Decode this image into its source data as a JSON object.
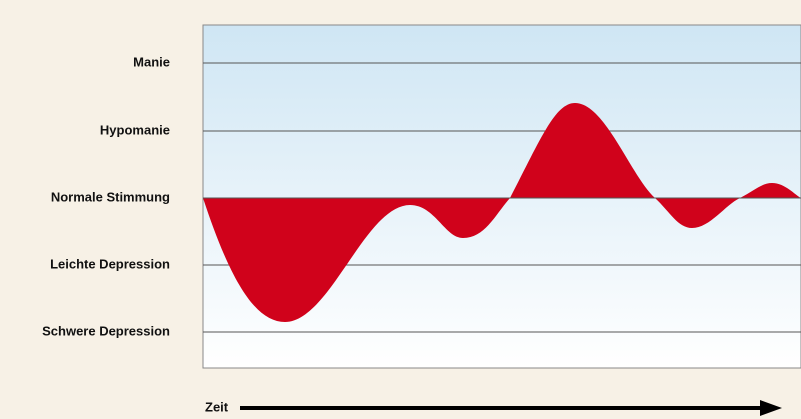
{
  "levels": [
    "Manie",
    "Hypomanie",
    "Normale Stimmung",
    "Leichte Depression",
    "Schwere Depression"
  ],
  "x_label": "Zeit"
}
